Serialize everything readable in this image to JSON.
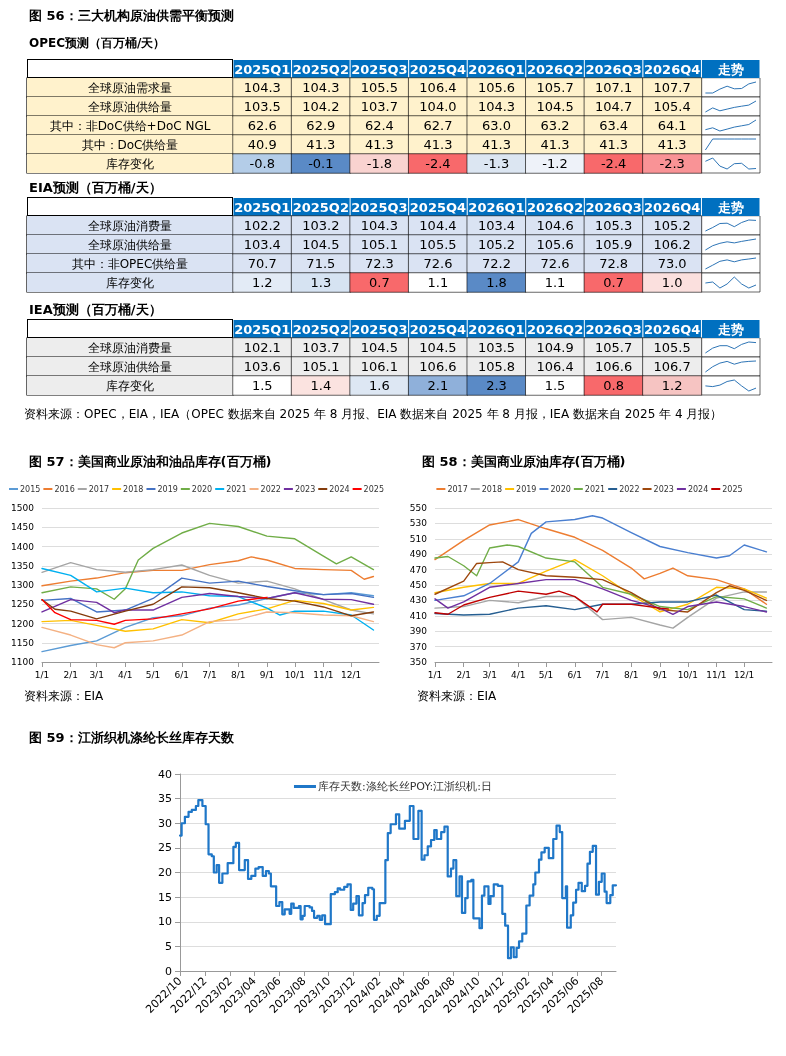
{
  "chart_data": [
    {
      "type": "heatmap",
      "title": "图 56：三大机构原油供需平衡预测",
      "subtitle": "OPEC预测（百万桶/天）",
      "categories": [
        "2025Q1",
        "2025Q2",
        "2025Q3",
        "2025Q4",
        "2026Q1",
        "2026Q2",
        "2026Q3",
        "2026Q4",
        "走势"
      ],
      "y_categories": [
        "全球原油需求量",
        "全球原油供给量",
        "其中：非DoC供给+DoC NGL",
        "其中：DoC供给量",
        "库存变化"
      ],
      "cells": [
        [
          104.3,
          104.3,
          105.5,
          106.4,
          105.6,
          105.7,
          107.1,
          107.7,
          null
        ],
        [
          103.5,
          104.2,
          103.7,
          104.0,
          104.3,
          104.5,
          104.7,
          105.4,
          null
        ],
        [
          62.6,
          62.9,
          62.4,
          62.7,
          63.0,
          63.2,
          63.4,
          64.1,
          null
        ],
        [
          40.9,
          41.3,
          41.3,
          41.3,
          41.3,
          41.3,
          41.3,
          41.3,
          null
        ],
        [
          -0.8,
          -0.1,
          -1.8,
          -2.4,
          -1.3,
          -1.2,
          -2.4,
          -2.3,
          null
        ]
      ],
      "cell_labels": [
        [
          "104.3",
          "104.3",
          "105.5",
          "106.4",
          "105.6",
          "105.7",
          "107.1",
          "107.7",
          null
        ],
        [
          "103.5",
          "104.2",
          "103.7",
          "104.0",
          "104.3",
          "104.5",
          "104.7",
          "105.4",
          null
        ],
        [
          "62.6",
          "62.9",
          "62.4",
          "62.7",
          "63.0",
          "63.2",
          "63.4",
          "64.1",
          null
        ],
        [
          "40.9",
          "41.3",
          "41.3",
          "41.3",
          "41.3",
          "41.3",
          "41.3",
          "41.3",
          null
        ],
        [
          "-0.8",
          "-0.1",
          "-1.8",
          "-2.4",
          "-1.3",
          "-1.2",
          "-2.4",
          "-2.3",
          null
        ]
      ],
      "colors": [
        [
          "#fff2cc",
          "#fff2cc",
          "#fff2cc",
          "#fff2cc",
          "#fff2cc",
          "#fff2cc",
          "#fff2cc",
          "#fff2cc",
          null
        ],
        [
          "#fff2cc",
          "#fff2cc",
          "#fff2cc",
          "#fff2cc",
          "#fff2cc",
          "#fff2cc",
          "#fff2cc",
          "#fff2cc",
          null
        ],
        [
          "#fff2cc",
          "#fff2cc",
          "#fff2cc",
          "#fff2cc",
          "#fff2cc",
          "#fff2cc",
          "#fff2cc",
          "#fff2cc",
          null
        ],
        [
          "#fff2cc",
          "#fff2cc",
          "#fff2cc",
          "#fff2cc",
          "#fff2cc",
          "#fff2cc",
          "#fff2cc",
          "#fff2cc",
          null
        ],
        [
          "#b4cde8",
          "#5a8ac6",
          "#f9d3d0",
          "#f8696b",
          "#dce6f2",
          "#eef2f9",
          "#f8696b",
          "#f99396",
          null
        ]
      ]
    },
    {
      "type": "heatmap",
      "title": "EIA预测（百万桶/天）",
      "categories": [
        "2025Q1",
        "2025Q2",
        "2025Q3",
        "2025Q4",
        "2026Q1",
        "2026Q2",
        "2026Q3",
        "2026Q4",
        "走势"
      ],
      "y_categories": [
        "全球原油消费量",
        "全球原油供给量",
        "其中：非OPEC供给量",
        "库存变化"
      ],
      "cells": [
        [
          102.2,
          103.2,
          104.3,
          104.4,
          103.4,
          104.6,
          105.3,
          105.2,
          null
        ],
        [
          103.4,
          104.5,
          105.1,
          105.5,
          105.2,
          105.6,
          105.9,
          106.2,
          null
        ],
        [
          70.7,
          71.5,
          72.3,
          72.6,
          72.2,
          72.6,
          72.8,
          73.0,
          null
        ],
        [
          1.2,
          1.3,
          0.7,
          1.1,
          1.8,
          1.1,
          0.7,
          1.0,
          null
        ]
      ],
      "cell_labels": [
        [
          "102.2",
          "103.2",
          "104.3",
          "104.4",
          "103.4",
          "104.6",
          "105.3",
          "105.2",
          null
        ],
        [
          "103.4",
          "104.5",
          "105.1",
          "105.5",
          "105.2",
          "105.6",
          "105.9",
          "106.2",
          null
        ],
        [
          "70.7",
          "71.5",
          "72.3",
          "72.6",
          "72.2",
          "72.6",
          "72.8",
          "73.0",
          null
        ],
        [
          "1.2",
          "1.3",
          "0.7",
          "1.1",
          "1.8",
          "1.1",
          "0.7",
          "1.0",
          null
        ]
      ],
      "colors": [
        [
          "#dae3f3",
          "#dae3f3",
          "#dae3f3",
          "#dae3f3",
          "#dae3f3",
          "#dae3f3",
          "#dae3f3",
          "#dae3f3",
          null
        ],
        [
          "#dae3f3",
          "#dae3f3",
          "#dae3f3",
          "#dae3f3",
          "#dae3f3",
          "#dae3f3",
          "#dae3f3",
          "#dae3f3",
          null
        ],
        [
          "#dae3f3",
          "#dae3f3",
          "#dae3f3",
          "#dae3f3",
          "#dae3f3",
          "#dae3f3",
          "#dae3f3",
          "#dae3f3",
          null
        ],
        [
          "#e3ebf6",
          "#d6e3f2",
          "#f8696b",
          "#ffffff",
          "#5a8ac6",
          "#ffffff",
          "#f8696b",
          "#fbe0de",
          null
        ]
      ]
    },
    {
      "type": "heatmap",
      "title": "IEA预测（百万桶/天）",
      "categories": [
        "2025Q1",
        "2025Q2",
        "2025Q3",
        "2025Q4",
        "2026Q1",
        "2026Q2",
        "2026Q3",
        "2026Q4",
        "走势"
      ],
      "y_categories": [
        "全球原油消费量",
        "全球原油供给量",
        "库存变化"
      ],
      "cells": [
        [
          102.1,
          103.7,
          104.5,
          104.5,
          103.5,
          104.9,
          105.7,
          105.5,
          null
        ],
        [
          103.6,
          105.1,
          106.1,
          106.6,
          105.8,
          106.4,
          106.6,
          106.7,
          null
        ],
        [
          1.5,
          1.4,
          1.6,
          2.1,
          2.3,
          1.5,
          0.8,
          1.2,
          null
        ]
      ],
      "cell_labels": [
        [
          "102.1",
          "103.7",
          "104.5",
          "104.5",
          "103.5",
          "104.9",
          "105.7",
          "105.5",
          null
        ],
        [
          "103.6",
          "105.1",
          "106.1",
          "106.6",
          "105.8",
          "106.4",
          "106.6",
          "106.7",
          null
        ],
        [
          "1.5",
          "1.4",
          "1.6",
          "2.1",
          "2.3",
          "1.5",
          "0.8",
          "1.2",
          null
        ]
      ],
      "colors": [
        [
          "#ededed",
          "#ededed",
          "#ededed",
          "#ededed",
          "#ededed",
          "#ededed",
          "#ededed",
          "#ededed",
          null
        ],
        [
          "#ededed",
          "#ededed",
          "#ededed",
          "#ededed",
          "#ededed",
          "#ededed",
          "#ededed",
          "#ededed",
          null
        ],
        [
          "#ffffff",
          "#fbe3e0",
          "#dde7f3",
          "#8fb0da",
          "#5a8ac6",
          "#ffffff",
          "#f8696b",
          "#f6c4c2",
          null
        ]
      ],
      "annotations": [
        "资料来源：OPEC，EIA，IEA（OPEC 数据来自 2025 年 8 月报、EIA 数据来自 2025 年 8 月报，IEA 数据来自 2025 年 4 月报）"
      ]
    },
    {
      "type": "line",
      "title": "图 57：美国商业原油和油品库存(百万桶)",
      "xlim": [
        "--01-01",
        "--12-31"
      ],
      "xticks": [
        {
          "value": "--01-01",
          "label": "1/1"
        },
        {
          "value": "--02-01",
          "label": "2/1"
        },
        {
          "value": "--03-01",
          "label": "3/1"
        },
        {
          "value": "--04-01",
          "label": "4/1"
        },
        {
          "value": "--05-01",
          "label": "5/1"
        },
        {
          "value": "--06-01",
          "label": "6/1"
        },
        {
          "value": "--07-01",
          "label": "7/1"
        },
        {
          "value": "--08-01",
          "label": "8/1"
        },
        {
          "value": "--09-01",
          "label": "9/1"
        },
        {
          "value": "--10-01",
          "label": "10/1"
        },
        {
          "value": "--11-01",
          "label": "11/1"
        },
        {
          "value": "--12-01",
          "label": "12/1"
        }
      ],
      "ylim": [
        1100,
        1500
      ],
      "yticks": [
        1100,
        1150,
        1200,
        1250,
        1300,
        1350,
        1400,
        1450,
        1500
      ],
      "grid": "y",
      "legend": "top",
      "marker": "none",
      "line_style": "solid",
      "series": [
        {
          "name": "2015",
          "color": "#5b9bd5",
          "x": [
            "--01-01",
            "--02-01",
            "--03-01",
            "--04-01",
            "--05-01",
            "--06-01",
            "--07-01",
            "--08-01",
            "--09-01",
            "--10-01",
            "--11-01",
            "--12-01",
            "--12-25"
          ],
          "values": [
            1127,
            1143,
            1155,
            1190,
            1215,
            1220,
            1240,
            1248,
            1265,
            1280,
            1275,
            1280,
            1272
          ]
        },
        {
          "name": "2016",
          "color": "#ed7d31",
          "x": [
            "--01-01",
            "--02-01",
            "--03-01",
            "--04-01",
            "--05-01",
            "--06-01",
            "--07-01",
            "--08-01",
            "--08-15",
            "--09-01",
            "--10-01",
            "--11-01",
            "--12-01",
            "--12-15",
            "--12-25"
          ],
          "values": [
            1298,
            1310,
            1318,
            1332,
            1338,
            1338,
            1353,
            1363,
            1373,
            1365,
            1343,
            1340,
            1338,
            1315,
            1322
          ]
        },
        {
          "name": "2017",
          "color": "#a5a5a5",
          "x": [
            "--01-01",
            "--02-01",
            "--03-01",
            "--04-01",
            "--05-01",
            "--06-01",
            "--07-01",
            "--08-01",
            "--09-01",
            "--10-01",
            "--11-01",
            "--12-01",
            "--12-25"
          ],
          "values": [
            1333,
            1358,
            1340,
            1333,
            1340,
            1352,
            1325,
            1305,
            1310,
            1290,
            1262,
            1235,
            1225
          ]
        },
        {
          "name": "2018",
          "color": "#ffc000",
          "x": [
            "--01-01",
            "--02-01",
            "--03-01",
            "--04-01",
            "--05-01",
            "--06-01",
            "--07-01",
            "--08-01",
            "--09-01",
            "--10-01",
            "--11-01",
            "--12-01",
            "--12-25"
          ],
          "values": [
            1205,
            1208,
            1195,
            1180,
            1186,
            1210,
            1202,
            1225,
            1238,
            1260,
            1252,
            1235,
            1242
          ]
        },
        {
          "name": "2019",
          "color": "#4472c4",
          "x": [
            "--01-01",
            "--02-01",
            "--03-01",
            "--04-01",
            "--05-01",
            "--06-01",
            "--07-01",
            "--08-01",
            "--09-01",
            "--10-01",
            "--11-01",
            "--12-01",
            "--12-25"
          ],
          "values": [
            1260,
            1265,
            1230,
            1235,
            1265,
            1318,
            1305,
            1310,
            1296,
            1285,
            1275,
            1278,
            1268
          ]
        },
        {
          "name": "2020",
          "color": "#70ad47",
          "x": [
            "--01-01",
            "--02-01",
            "--03-01",
            "--03-20",
            "--04-01",
            "--04-15",
            "--05-01",
            "--06-01",
            "--07-01",
            "--08-01",
            "--09-01",
            "--10-01",
            "--11-01",
            "--11-15",
            "--12-01",
            "--12-25"
          ],
          "values": [
            1280,
            1295,
            1290,
            1263,
            1290,
            1365,
            1395,
            1435,
            1460,
            1452,
            1427,
            1420,
            1375,
            1355,
            1373,
            1340
          ]
        },
        {
          "name": "2021",
          "color": "#00b0f0",
          "x": [
            "--01-01",
            "--02-01",
            "--03-01",
            "--04-01",
            "--05-01",
            "--06-01",
            "--07-01",
            "--08-01",
            "--09-01",
            "--09-15",
            "--10-01",
            "--11-01",
            "--12-01",
            "--12-25"
          ],
          "values": [
            1343,
            1325,
            1282,
            1292,
            1280,
            1282,
            1272,
            1270,
            1240,
            1222,
            1232,
            1232,
            1222,
            1183
          ]
        },
        {
          "name": "2022",
          "color": "#f4b183",
          "x": [
            "--01-01",
            "--02-01",
            "--03-01",
            "--03-20",
            "--04-01",
            "--05-01",
            "--06-01",
            "--07-01",
            "--08-01",
            "--09-01",
            "--10-01",
            "--11-01",
            "--12-01",
            "--12-25"
          ],
          "values": [
            1190,
            1170,
            1145,
            1137,
            1150,
            1155,
            1170,
            1205,
            1210,
            1230,
            1228,
            1222,
            1220,
            1205
          ]
        },
        {
          "name": "2023",
          "color": "#7030a0",
          "x": [
            "--01-01",
            "--02-01",
            "--03-01",
            "--03-20",
            "--04-01",
            "--05-01",
            "--06-01",
            "--07-01",
            "--08-01",
            "--09-01",
            "--10-01",
            "--11-01",
            "--12-01",
            "--12-25"
          ],
          "values": [
            1230,
            1262,
            1255,
            1228,
            1235,
            1235,
            1268,
            1278,
            1270,
            1265,
            1280,
            1263,
            1262,
            1250
          ]
        },
        {
          "name": "2024",
          "color": "#843c0c",
          "x": [
            "--01-01",
            "--01-15",
            "--02-01",
            "--03-01",
            "--04-01",
            "--05-01",
            "--06-01",
            "--07-01",
            "--08-01",
            "--09-01",
            "--10-01",
            "--11-01",
            "--12-01",
            "--12-25"
          ],
          "values": [
            1262,
            1237,
            1232,
            1212,
            1232,
            1250,
            1295,
            1293,
            1280,
            1265,
            1258,
            1243,
            1220,
            1230
          ]
        },
        {
          "name": "2025",
          "color": "#ff0000",
          "x": [
            "--01-01",
            "--01-15",
            "--02-01",
            "--03-01",
            "--03-20",
            "--04-01",
            "--05-01",
            "--06-01",
            "--07-01",
            "--08-01",
            "--09-01"
          ],
          "values": [
            1262,
            1228,
            1210,
            1208,
            1198,
            1208,
            1212,
            1225,
            1238,
            1258,
            1268
          ]
        }
      ],
      "annotations": [
        "资料来源：EIA"
      ]
    },
    {
      "type": "line",
      "title": "图 58：美国商业原油库存(百万桶)",
      "xlim": [
        "--01-01",
        "--12-31"
      ],
      "xticks": [
        {
          "value": "--01-01",
          "label": "1/1"
        },
        {
          "value": "--02-01",
          "label": "2/1"
        },
        {
          "value": "--03-01",
          "label": "3/1"
        },
        {
          "value": "--04-01",
          "label": "4/1"
        },
        {
          "value": "--05-01",
          "label": "5/1"
        },
        {
          "value": "--06-01",
          "label": "6/1"
        },
        {
          "value": "--07-01",
          "label": "7/1"
        },
        {
          "value": "--08-01",
          "label": "8/1"
        },
        {
          "value": "--09-01",
          "label": "9/1"
        },
        {
          "value": "--10-01",
          "label": "10/1"
        },
        {
          "value": "--11-01",
          "label": "11/1"
        },
        {
          "value": "--12-01",
          "label": "12/1"
        }
      ],
      "ylim": [
        350,
        550
      ],
      "yticks": [
        350,
        370,
        390,
        410,
        430,
        450,
        470,
        490,
        510,
        530,
        550
      ],
      "grid": "y",
      "legend": "top",
      "marker": "none",
      "line_style": "solid",
      "series": [
        {
          "name": "2017",
          "color": "#ed7d31",
          "x": [
            "--01-01",
            "--02-01",
            "--03-01",
            "--04-01",
            "--05-01",
            "--06-01",
            "--07-01",
            "--08-01",
            "--08-15",
            "--09-01",
            "--09-15",
            "--10-01",
            "--11-01",
            "--12-01",
            "--12-25"
          ],
          "values": [
            483,
            508,
            528,
            535,
            523,
            512,
            495,
            472,
            458,
            465,
            472,
            462,
            457,
            445,
            425
          ]
        },
        {
          "name": "2018",
          "color": "#a5a5a5",
          "x": [
            "--01-01",
            "--02-01",
            "--03-01",
            "--04-01",
            "--05-01",
            "--06-01",
            "--07-01",
            "--08-01",
            "--09-01",
            "--09-15",
            "--10-01",
            "--11-01",
            "--12-01",
            "--12-25"
          ],
          "values": [
            420,
            422,
            430,
            427,
            435,
            435,
            405,
            408,
            398,
            394,
            408,
            433,
            441,
            441
          ]
        },
        {
          "name": "2019",
          "color": "#ffc000",
          "x": [
            "--01-01",
            "--02-01",
            "--03-01",
            "--04-01",
            "--05-01",
            "--06-01",
            "--07-01",
            "--08-01",
            "--09-01",
            "--10-01",
            "--11-01",
            "--12-01",
            "--12-25"
          ],
          "values": [
            440,
            447,
            452,
            452,
            468,
            483,
            462,
            437,
            415,
            425,
            447,
            445,
            433
          ]
        },
        {
          "name": "2020",
          "color": "#4a7fd0",
          "x": [
            "--01-01",
            "--02-01",
            "--03-01",
            "--04-01",
            "--04-15",
            "--05-01",
            "--06-01",
            "--06-20",
            "--07-01",
            "--08-01",
            "--09-01",
            "--10-01",
            "--11-01",
            "--11-15",
            "--12-01",
            "--12-25"
          ],
          "values": [
            430,
            436,
            452,
            480,
            517,
            532,
            535,
            540,
            537,
            518,
            500,
            492,
            485,
            488,
            502,
            493
          ]
        },
        {
          "name": "2021",
          "color": "#70ad47",
          "x": [
            "--01-01",
            "--01-15",
            "--02-01",
            "--02-15",
            "--03-01",
            "--03-20",
            "--04-01",
            "--05-01",
            "--06-01",
            "--07-01",
            "--08-01",
            "--09-01",
            "--10-01",
            "--11-01",
            "--12-01",
            "--12-25"
          ],
          "values": [
            485,
            487,
            475,
            462,
            498,
            502,
            500,
            485,
            480,
            447,
            438,
            422,
            418,
            435,
            432,
            420
          ]
        },
        {
          "name": "2022",
          "color": "#255e91",
          "x": [
            "--01-01",
            "--02-01",
            "--03-01",
            "--04-01",
            "--05-01",
            "--06-01",
            "--07-01",
            "--08-01",
            "--09-01",
            "--10-01",
            "--11-01",
            "--12-01",
            "--12-25"
          ],
          "values": [
            413,
            411,
            412,
            420,
            423,
            418,
            425,
            425,
            428,
            428,
            437,
            418,
            416
          ]
        },
        {
          "name": "2023",
          "color": "#9e480e",
          "x": [
            "--01-01",
            "--02-01",
            "--02-15",
            "--03-01",
            "--03-15",
            "--04-01",
            "--05-01",
            "--06-01",
            "--07-01",
            "--08-01",
            "--09-01",
            "--10-01",
            "--11-01",
            "--11-15",
            "--12-01",
            "--12-25"
          ],
          "values": [
            438,
            455,
            478,
            479,
            480,
            470,
            462,
            460,
            457,
            440,
            418,
            415,
            440,
            449,
            443,
            430
          ]
        },
        {
          "name": "2024",
          "color": "#7030a0",
          "x": [
            "--01-01",
            "--01-15",
            "--02-01",
            "--03-01",
            "--04-01",
            "--05-01",
            "--06-01",
            "--07-01",
            "--08-01",
            "--09-01",
            "--09-15",
            "--10-01",
            "--11-01",
            "--12-01",
            "--12-25"
          ],
          "values": [
            432,
            420,
            428,
            447,
            452,
            457,
            457,
            445,
            430,
            420,
            412,
            422,
            428,
            422,
            415
          ]
        },
        {
          "name": "2025",
          "color": "#c00000",
          "x": [
            "--01-01",
            "--01-15",
            "--02-01",
            "--03-01",
            "--04-01",
            "--05-01",
            "--05-15",
            "--06-01",
            "--06-25",
            "--07-01",
            "--08-01",
            "--09-01",
            "--09-10"
          ],
          "values": [
            414,
            412,
            424,
            434,
            442,
            438,
            442,
            435,
            415,
            425,
            425,
            420,
            419
          ]
        }
      ],
      "annotations": [
        "资料来源：EIA"
      ]
    },
    {
      "type": "step",
      "title": "图 59：江浙织机涤纶长丝库存天数",
      "xlim": [
        "2022-10-01",
        "2025-09-05"
      ],
      "xticks": [
        {
          "value": "2022-10",
          "label": "2022/10"
        },
        {
          "value": "2022-12",
          "label": "2022/12"
        },
        {
          "value": "2023-02",
          "label": "2023/02"
        },
        {
          "value": "2023-04",
          "label": "2023/04"
        },
        {
          "value": "2023-06",
          "label": "2023/06"
        },
        {
          "value": "2023-08",
          "label": "2023/08"
        },
        {
          "value": "2023-10",
          "label": "2023/10"
        },
        {
          "value": "2023-12",
          "label": "2023/12"
        },
        {
          "value": "2024-02",
          "label": "2024/02"
        },
        {
          "value": "2024-04",
          "label": "2024/04"
        },
        {
          "value": "2024-06",
          "label": "2024/06"
        },
        {
          "value": "2024-08",
          "label": "2024/08"
        },
        {
          "value": "2024-10",
          "label": "2024/10"
        },
        {
          "value": "2024-12",
          "label": "2024/12"
        },
        {
          "value": "2025-02",
          "label": "2025/02"
        },
        {
          "value": "2025-04",
          "label": "2025/04"
        },
        {
          "value": "2025-06",
          "label": "2025/06"
        },
        {
          "value": "2025-08",
          "label": "2025/08"
        }
      ],
      "ylim": [
        0,
        40
      ],
      "yticks": [
        0,
        5,
        10,
        15,
        20,
        25,
        30,
        35,
        40
      ],
      "grid": "y",
      "legend": "top",
      "marker": "none",
      "line_style": "solid",
      "series": [
        {
          "name": "库存天数:涤纶长丝POY:江浙织机:日",
          "color": "#1f77c8",
          "x": [
            "2022-10-01",
            "2022-10-05",
            "2022-10-13",
            "2022-10-22",
            "2022-10-30",
            "2022-11-09",
            "2022-11-15",
            "2022-11-25",
            "2022-12-03",
            "2022-12-10",
            "2022-12-18",
            "2022-12-23",
            "2022-12-30",
            "2023-01-05",
            "2023-01-13",
            "2023-01-26",
            "2023-02-09",
            "2023-02-15",
            "2023-02-23",
            "2023-03-09",
            "2023-03-17",
            "2023-03-25",
            "2023-04-04",
            "2023-04-12",
            "2023-04-22",
            "2023-04-30",
            "2023-05-07",
            "2023-05-12",
            "2023-05-25",
            "2023-06-02",
            "2023-06-09",
            "2023-06-15",
            "2023-06-27",
            "2023-07-01",
            "2023-07-07",
            "2023-07-20",
            "2023-07-24",
            "2023-07-29",
            "2023-08-03",
            "2023-08-15",
            "2023-08-21",
            "2023-08-26",
            "2023-09-03",
            "2023-09-09",
            "2023-09-15",
            "2023-09-22",
            "2023-10-06",
            "2023-10-16",
            "2023-10-23",
            "2023-10-29",
            "2023-11-08",
            "2023-11-16",
            "2023-11-24",
            "2023-11-30",
            "2023-12-08",
            "2023-12-14",
            "2023-12-23",
            "2023-12-29",
            "2024-01-06",
            "2024-01-16",
            "2024-01-20",
            "2024-01-27",
            "2024-02-03",
            "2024-02-17",
            "2024-02-23",
            "2024-03-01",
            "2024-03-14",
            "2024-03-22",
            "2024-04-05",
            "2024-04-17",
            "2024-04-26",
            "2024-05-08",
            "2024-05-16",
            "2024-05-23",
            "2024-05-31",
            "2024-06-08",
            "2024-06-16",
            "2024-06-22",
            "2024-07-03",
            "2024-07-11",
            "2024-07-19",
            "2024-07-27",
            "2024-08-02",
            "2024-08-09",
            "2024-08-17",
            "2024-08-23",
            "2024-08-31",
            "2024-09-06",
            "2024-09-15",
            "2024-09-20",
            "2024-10-05",
            "2024-10-11",
            "2024-10-17",
            "2024-10-27",
            "2024-11-01",
            "2024-11-09",
            "2024-11-19",
            "2024-11-30",
            "2024-12-07",
            "2024-12-14",
            "2024-12-21",
            "2024-12-28",
            "2025-01-04",
            "2025-01-10",
            "2025-01-18",
            "2025-01-28",
            "2025-02-05",
            "2025-02-14",
            "2025-02-19",
            "2025-02-28",
            "2025-03-06",
            "2025-03-14",
            "2025-03-24",
            "2025-04-04",
            "2025-04-12",
            "2025-04-20",
            "2025-04-26",
            "2025-05-05",
            "2025-05-08",
            "2025-05-17",
            "2025-05-23",
            "2025-05-30",
            "2025-06-05",
            "2025-06-13",
            "2025-06-21",
            "2025-06-27",
            "2025-07-03",
            "2025-07-10",
            "2025-07-18",
            "2025-07-25",
            "2025-08-01",
            "2025-08-08",
            "2025-08-13",
            "2025-08-22",
            "2025-08-28",
            "2025-09-05"
          ],
          "values": [
            27.5,
            30,
            31.3,
            32.3,
            32.7,
            33.5,
            34.7,
            33.5,
            29.8,
            23.7,
            23.3,
            20,
            21.5,
            17.9,
            19.8,
            21.9,
            25.2,
            26,
            20.5,
            22.5,
            18.7,
            19.3,
            20.8,
            21.1,
            19.3,
            20.3,
            19.8,
            17.2,
            13.2,
            14,
            11.5,
            12.5,
            11.6,
            13.7,
            12.8,
            13.2,
            10.5,
            11.2,
            13.2,
            12.9,
            12.2,
            10.8,
            11.2,
            10.4,
            11.3,
            9.5,
            15.6,
            16,
            16.8,
            16.5,
            17.1,
            17.6,
            12.4,
            13.7,
            15.2,
            11.3,
            13.8,
            15.4,
            16.9,
            16.6,
            10.4,
            11.2,
            13.8,
            22.5,
            28,
            29.8,
            31.8,
            28.9,
            30.5,
            33.5,
            26.8,
            32.5,
            22.6,
            23.5,
            25.3,
            26.6,
            28.6,
            26.8,
            28.2,
            29.3,
            19.2,
            20.8,
            22.5,
            15.2,
            19.2,
            11.8,
            14.8,
            18.2,
            18.5,
            10.7,
            8.7,
            15.3,
            17.2,
            13.6,
            15.2,
            17.6,
            17.3,
            11.6,
            9.2,
            2.6,
            4.8,
            2.8,
            4.7,
            6,
            7.6,
            13.3,
            15.3,
            17.6,
            20,
            22.6,
            24.1,
            25,
            22.9,
            26.8,
            29.5,
            28.2,
            14.8,
            17.2,
            8.8,
            11.3,
            13.9,
            16.5,
            17.9,
            16.2,
            17.3,
            21.8,
            24.2,
            25.4,
            15.5,
            18.1,
            19.8,
            16.1,
            13.8,
            15.4,
            17.4,
            17.4
          ]
        }
      ]
    }
  ]
}
